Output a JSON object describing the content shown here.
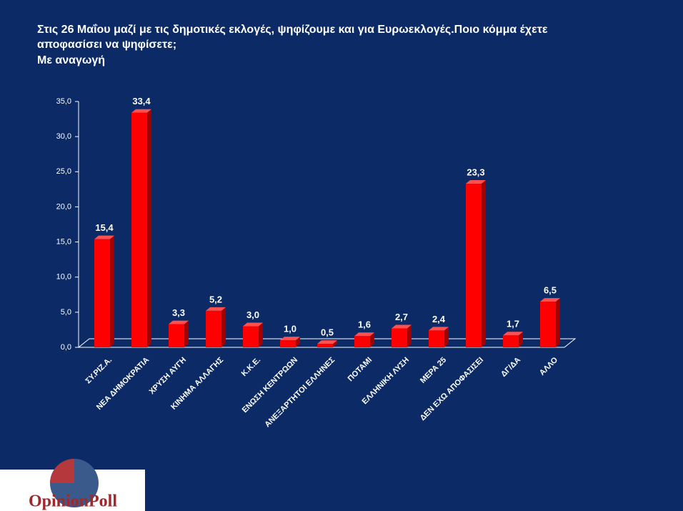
{
  "chart_data": {
    "type": "bar3d",
    "title": [
      "Στις 26 Μαΐου μαζί με τις δημοτικές εκλογές, ψηφίζουμε και για Ευρωεκλογές.Ποιο κόμμα έχετε",
      "αποφασίσει να ψηφίσετε;"
    ],
    "subtitle": "Με αναγωγή",
    "categories": [
      "ΣΥ.ΡΙΖ.Α.",
      "ΝΕΑ ΔΗΜΟΚΡΑΤΙΑ",
      "ΧΡΥΣΗ ΑΥΓΗ",
      "ΚΙΝΗΜΑ ΑΛΛΑΓΗΣ",
      "Κ.Κ.Ε.",
      "ΕΝΩΣΗ ΚΕΝΤΡΩΩΝ",
      "ΑΝΕΞΑΡΤΗΤΟΙ ΕΛΛΗΝΕΣ",
      "ΠΟΤΑΜΙ",
      "ΕΛΛΗΝΙΚΗ ΛΥΣΗ",
      "ΜΕΡΑ 25",
      "ΔΕΝ ΕΧΩ ΑΠΟΦΑΣΙΣΕΙ",
      "ΔΓ/ΔΑ",
      "ΑΛΛΟ"
    ],
    "values": [
      15.4,
      33.4,
      3.3,
      5.2,
      3.0,
      1.0,
      0.5,
      1.6,
      2.7,
      2.4,
      23.3,
      1.7,
      6.5
    ],
    "value_labels": [
      "15,4",
      "33,4",
      "3,3",
      "5,2",
      "3,0",
      "1,0",
      "0,5",
      "1,6",
      "2,7",
      "2,4",
      "23,3",
      "1,7",
      "6,5"
    ],
    "color": "#ff0000",
    "ylim": [
      0,
      35
    ],
    "yticks": [
      {
        "value": 0,
        "label": "0,0"
      },
      {
        "value": 5,
        "label": "5,0"
      },
      {
        "value": 10,
        "label": "10,0"
      },
      {
        "value": 15,
        "label": "15,0"
      },
      {
        "value": 20,
        "label": "20,0"
      },
      {
        "value": 25,
        "label": "25,0"
      },
      {
        "value": 30,
        "label": "30,0"
      },
      {
        "value": 35,
        "label": "35,0"
      }
    ],
    "grid": false
  },
  "logo": "OpinionPoll"
}
